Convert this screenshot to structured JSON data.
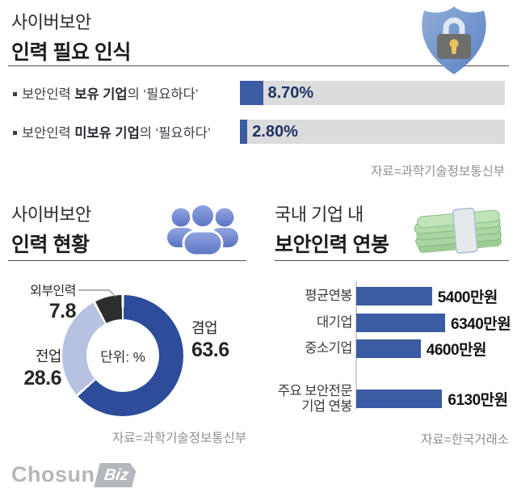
{
  "need_section": {
    "title_line1": "사이버보안",
    "title_line2": "인력 필요 인식",
    "rows": [
      {
        "prefix": "보안인력 ",
        "bold": "보유 기업",
        "suffix": "의 ‘필요하다’",
        "value_label": "8.70%",
        "percent": 8.7
      },
      {
        "prefix": "보안인력 ",
        "bold": "미보유 기업",
        "suffix": "의 ‘필요하다’",
        "value_label": "2.80%",
        "percent": 2.8
      }
    ],
    "source": "자료=과학기술정보통신부"
  },
  "status_section": {
    "title_line1": "사이버보안",
    "title_line2": "인력 현황",
    "center_label": "단위: %",
    "source": "자료=과학기술정보통신부",
    "segments": [
      {
        "label": "겸업",
        "value_label": "63.6",
        "value": 63.6,
        "color": "#2d4c9a"
      },
      {
        "label": "전업",
        "value_label": "28.6",
        "value": 28.6,
        "color": "#b7c1e1"
      },
      {
        "label": "외부인력",
        "value_label": "7.8",
        "value": 7.8,
        "color": "#2d2d2d"
      }
    ]
  },
  "salary_section": {
    "title_line1": "국내 기업 내",
    "title_line2": "보안인력 연봉",
    "source": "자료=한국거래소",
    "max_value": 6340,
    "bars": [
      {
        "label_line1": "평균연봉",
        "value_label": "5400만원",
        "value": 5400
      },
      {
        "label_line1": "대기업",
        "value_label": "6340만원",
        "value": 6340
      },
      {
        "label_line1": "중소기업",
        "value_label": "4600만원",
        "value": 4600
      },
      {
        "label_line1": "주요 보안전문",
        "label_line2": "기업 연봉",
        "value_label": "6130만원",
        "value": 6130
      }
    ]
  },
  "footer": {
    "brand": "Chosun",
    "brand_suffix": "Biz"
  },
  "colors": {
    "bar_blue": "#3b5ba3",
    "bar_track": "#dcdcdc",
    "value_navy": "#1e3464",
    "donut_blue": "#2d4c9a",
    "donut_light": "#b7c1e1",
    "donut_dark": "#2d2d2d",
    "source_gray": "#8f8f8f"
  },
  "chart_data": [
    {
      "type": "bar",
      "orientation": "horizontal",
      "title": "사이버보안 인력 필요 인식",
      "categories": [
        "보안인력 보유 기업의 ‘필요하다’",
        "보안인력 미보유 기업의 ‘필요하다’"
      ],
      "values": [
        8.7,
        2.8
      ],
      "value_labels": [
        "8.70%",
        "2.80%"
      ],
      "unit": "%",
      "xlim": [
        0,
        100
      ],
      "source": "자료=과학기술정보통신부"
    },
    {
      "type": "pie",
      "subtype": "donut",
      "title": "사이버보안 인력 현황",
      "labels": [
        "겸업",
        "전업",
        "외부인력"
      ],
      "values": [
        63.6,
        28.6,
        7.8
      ],
      "colors": [
        "#2d4c9a",
        "#b7c1e1",
        "#2d2d2d"
      ],
      "unit": "%",
      "center_label": "단위: %",
      "start_angle_deg": 0,
      "direction": "clockwise",
      "source": "자료=과학기술정보통신부"
    },
    {
      "type": "bar",
      "orientation": "horizontal",
      "title": "국내 기업 내 보안인력 연봉",
      "categories": [
        "평균연봉",
        "대기업",
        "중소기업",
        "주요 보안전문 기업 연봉"
      ],
      "values": [
        5400,
        6340,
        4600,
        6130
      ],
      "value_labels": [
        "5400만원",
        "6340만원",
        "4600만원",
        "6130만원"
      ],
      "unit": "만원",
      "xlim": [
        0,
        6340
      ],
      "source": "자료=한국거래소"
    }
  ]
}
